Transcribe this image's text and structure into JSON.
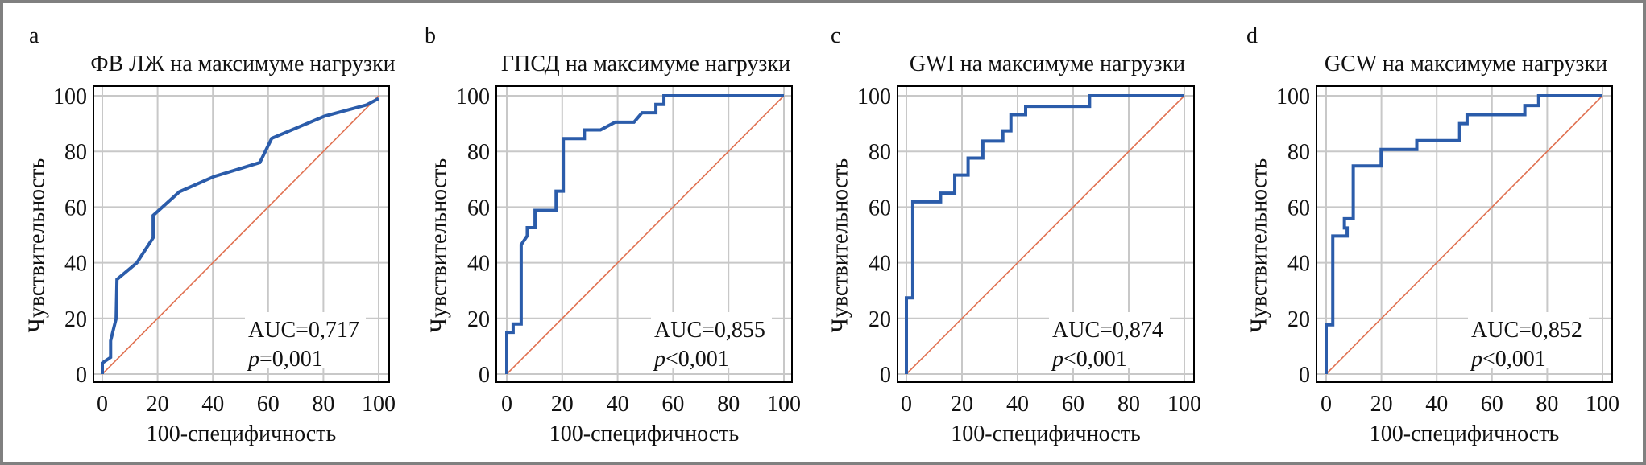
{
  "colors": {
    "roc": "#2b5caa",
    "diagonal": "#e07050",
    "grid": "#c8c8c8",
    "axis": "#000000",
    "border": "#808080"
  },
  "chart_data": [
    {
      "type": "line",
      "panel_letter": "a",
      "title": "ФВ ЛЖ на максимуме нагрузки",
      "xlabel": "100-специфичность",
      "ylabel": "Чувствительность",
      "xlim": [
        0,
        100
      ],
      "ylim": [
        0,
        100
      ],
      "xticks": [
        "0",
        "20",
        "40",
        "60",
        "80",
        "100"
      ],
      "yticks": [
        "0",
        "20",
        "40",
        "60",
        "80",
        "100"
      ],
      "grid": true,
      "auc_label": "AUC=0,717",
      "p_prefix": "p",
      "p_rest": "=0,001",
      "series": [
        {
          "name": "ROC",
          "x": [
            0,
            0,
            3,
            3,
            5,
            5.3,
            12.5,
            18.4,
            18.4,
            27.9,
            40.5,
            57,
            61.3,
            80.5,
            95.6,
            100
          ],
          "y": [
            0,
            4,
            6,
            12,
            20,
            34,
            40,
            49,
            57,
            65.5,
            71,
            76,
            84.7,
            92.7,
            96.7,
            99
          ]
        },
        {
          "name": "reference",
          "x": [
            0,
            100
          ],
          "y": [
            0,
            100
          ]
        }
      ]
    },
    {
      "type": "line",
      "panel_letter": "b",
      "title": "ГПСД на максимуме нагрузки",
      "xlabel": "100-специфичность",
      "ylabel": "Чувствительность",
      "xlim": [
        0,
        100
      ],
      "ylim": [
        0,
        100
      ],
      "xticks": [
        "0",
        "20",
        "40",
        "60",
        "80",
        "100"
      ],
      "yticks": [
        "0",
        "20",
        "40",
        "60",
        "80",
        "100"
      ],
      "grid": true,
      "auc_label": "AUC=0,855",
      "p_prefix": "p",
      "p_rest": "<0,001",
      "series": [
        {
          "name": "ROC",
          "x": [
            0,
            0,
            2.3,
            2.3,
            5.2,
            5.2,
            7.4,
            7.4,
            10.2,
            10.2,
            17.8,
            17.8,
            20.4,
            20.4,
            28,
            28,
            33.8,
            39.1,
            45.9,
            48.8,
            53.8,
            53.8,
            56.7,
            56.7,
            100
          ],
          "y": [
            0,
            15,
            15,
            18,
            18,
            46.5,
            49.7,
            52.6,
            52.6,
            58.8,
            58.8,
            65.7,
            65.7,
            84.6,
            84.6,
            87.7,
            87.7,
            90.5,
            90.5,
            93.9,
            93.9,
            96.9,
            96.9,
            100,
            100
          ]
        },
        {
          "name": "reference",
          "x": [
            0,
            100
          ],
          "y": [
            0,
            100
          ]
        }
      ]
    },
    {
      "type": "line",
      "panel_letter": "c",
      "title": "GWI на максимуме нагрузки",
      "xlabel": "100-специфичность",
      "ylabel": "Чувствительность",
      "xlim": [
        0,
        100
      ],
      "ylim": [
        0,
        100
      ],
      "xticks": [
        "0",
        "20",
        "40",
        "60",
        "80",
        "100"
      ],
      "yticks": [
        "0",
        "20",
        "40",
        "60",
        "80",
        "100"
      ],
      "grid": true,
      "auc_label": "AUC=0,874",
      "p_prefix": "p",
      "p_rest": "<0,001",
      "series": [
        {
          "name": "ROC",
          "x": [
            0,
            0,
            2.3,
            2.3,
            12.3,
            12.3,
            17.4,
            17.4,
            22.2,
            22.2,
            27.5,
            27.5,
            34.7,
            34.7,
            37.6,
            37.6,
            42.9,
            42.9,
            65.9,
            65.9,
            100
          ],
          "y": [
            0,
            27.4,
            27.4,
            61.9,
            61.9,
            65,
            65,
            71.5,
            71.5,
            77.6,
            77.6,
            83.7,
            83.7,
            87.4,
            87.4,
            93.2,
            93.2,
            96.2,
            96.2,
            100,
            100
          ]
        },
        {
          "name": "reference",
          "x": [
            0,
            100
          ],
          "y": [
            0,
            100
          ]
        }
      ]
    },
    {
      "type": "line",
      "panel_letter": "d",
      "title": "GCW на максимуме нагрузки",
      "xlabel": "100-специфичность",
      "ylabel": "Чувствительность",
      "xlim": [
        0,
        100
      ],
      "ylim": [
        0,
        100
      ],
      "xticks": [
        "0",
        "20",
        "40",
        "60",
        "80",
        "100"
      ],
      "yticks": [
        "0",
        "20",
        "40",
        "60",
        "80",
        "100"
      ],
      "grid": true,
      "auc_label": "AUC=0,852",
      "p_prefix": "p",
      "p_rest": "<0,001",
      "series": [
        {
          "name": "ROC",
          "x": [
            0,
            0,
            2.4,
            2.4,
            7.6,
            7.6,
            6.6,
            6.6,
            9.8,
            9.8,
            19.9,
            19.9,
            32.8,
            32.8,
            48.3,
            48.3,
            51,
            51,
            71.9,
            71.9,
            76.9,
            76.9,
            100
          ],
          "y": [
            0,
            17.7,
            17.7,
            49.6,
            49.6,
            52.5,
            52.5,
            55.8,
            55.8,
            74.8,
            74.8,
            80.7,
            80.7,
            83.9,
            83.9,
            90,
            90,
            93.2,
            93.2,
            96.5,
            96.5,
            100,
            100
          ]
        },
        {
          "name": "reference",
          "x": [
            0,
            100
          ],
          "y": [
            0,
            100
          ]
        }
      ]
    }
  ]
}
